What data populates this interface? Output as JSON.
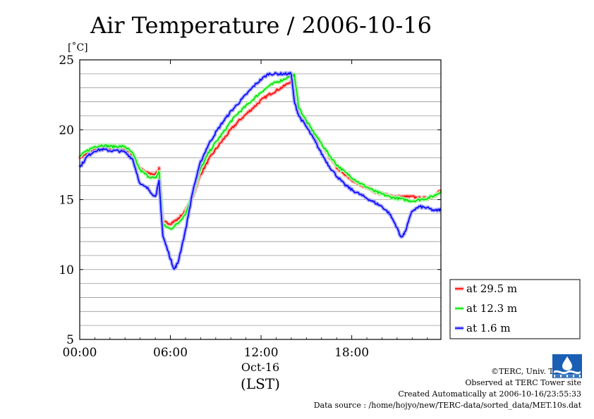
{
  "chart_data": {
    "type": "line",
    "title": "Air Temperature / 2006-10-16",
    "ylabel": "[˚C]",
    "xlabel": "(LST)",
    "date_label": "Oct-16",
    "x_ticks": [
      "00:00",
      "06:00",
      "12:00",
      "18:00"
    ],
    "x_range_hours": [
      0,
      23.9
    ],
    "y_ticks": [
      "25",
      "20",
      "15",
      "10",
      "5"
    ],
    "ylim": [
      5,
      25
    ],
    "grid": true,
    "legend_position": "right",
    "series": [
      {
        "name": "at 29.5 m",
        "color": "#ff0000",
        "x": [
          0,
          0.5,
          1,
          1.5,
          2,
          2.5,
          3,
          3.5,
          4,
          4.5,
          5,
          5.25,
          5.5,
          6,
          6.5,
          7,
          7.5,
          8,
          8.5,
          9,
          9.5,
          10,
          10.5,
          11,
          11.5,
          12,
          12.5,
          13,
          13.5,
          14,
          14.2,
          14.5,
          15,
          15.5,
          16,
          16.5,
          17,
          17.5,
          18,
          18.5,
          19,
          19.5,
          20,
          20.5,
          21,
          21.5,
          22,
          22.5,
          23,
          23.5,
          23.9
        ],
        "values": [
          18.0,
          18.3,
          18.6,
          18.7,
          18.6,
          18.6,
          18.6,
          18.2,
          17.2,
          16.9,
          16.8,
          17.2,
          13.4,
          13.3,
          13.6,
          14.2,
          15.3,
          16.8,
          17.8,
          18.6,
          19.3,
          20.0,
          20.6,
          21.1,
          21.6,
          22.1,
          22.5,
          22.8,
          23.1,
          23.5,
          23.5,
          21.3,
          20.3,
          19.6,
          18.9,
          18.1,
          17.3,
          16.8,
          16.4,
          16.1,
          15.9,
          15.6,
          15.4,
          15.3,
          15.2,
          15.2,
          15.2,
          15.1,
          15.1,
          15.3,
          15.7
        ]
      },
      {
        "name": "at 12.3 m",
        "color": "#00e000",
        "x": [
          0,
          0.5,
          1,
          1.5,
          2,
          2.5,
          3,
          3.5,
          4,
          4.5,
          5,
          5.25,
          5.5,
          6,
          6.5,
          7,
          7.5,
          8,
          8.5,
          9,
          9.5,
          10,
          10.5,
          11,
          11.5,
          12,
          12.5,
          13,
          13.5,
          14,
          14.2,
          14.5,
          15,
          15.5,
          16,
          16.5,
          17,
          17.5,
          18,
          18.5,
          19,
          19.5,
          20,
          20.5,
          21,
          21.5,
          22,
          22.5,
          23,
          23.5,
          23.9
        ],
        "values": [
          18.1,
          18.5,
          18.8,
          18.9,
          18.8,
          18.8,
          18.8,
          18.3,
          17.1,
          16.7,
          16.5,
          17.0,
          13.2,
          12.9,
          13.3,
          14.0,
          15.5,
          17.2,
          18.3,
          19.1,
          19.8,
          20.6,
          21.2,
          21.7,
          22.2,
          22.7,
          23.1,
          23.4,
          23.6,
          23.9,
          23.9,
          21.6,
          20.6,
          19.8,
          19.0,
          18.2,
          17.5,
          17.0,
          16.6,
          16.2,
          15.9,
          15.6,
          15.4,
          15.2,
          15.1,
          15.0,
          14.9,
          15.0,
          15.1,
          15.3,
          15.6
        ]
      },
      {
        "name": "at 1.6 m",
        "color": "#0000ff",
        "x": [
          0,
          0.5,
          1,
          1.5,
          2,
          2.5,
          3,
          3.5,
          4,
          4.5,
          5,
          5.25,
          5.5,
          6,
          6.25,
          6.5,
          7,
          7.5,
          8,
          8.5,
          9,
          9.5,
          10,
          10.5,
          11,
          11.5,
          12,
          12.5,
          13,
          13.5,
          14,
          14.2,
          14.5,
          15,
          15.5,
          16,
          16.5,
          17,
          17.5,
          18,
          18.5,
          19,
          19.5,
          20,
          20.5,
          21,
          21.25,
          21.5,
          22,
          22.5,
          23,
          23.5,
          23.9
        ],
        "values": [
          17.3,
          18.1,
          18.5,
          18.6,
          18.5,
          18.5,
          18.4,
          17.9,
          16.1,
          15.8,
          15.2,
          16.3,
          12.4,
          10.8,
          10.0,
          10.5,
          12.8,
          15.7,
          17.7,
          18.9,
          19.8,
          20.6,
          21.3,
          21.9,
          22.5,
          23.1,
          23.6,
          24.0,
          24.0,
          24.0,
          24.0,
          22.0,
          21.0,
          20.2,
          19.3,
          18.3,
          17.4,
          16.7,
          16.1,
          15.7,
          15.4,
          15.1,
          14.8,
          14.5,
          14.0,
          13.0,
          12.3,
          12.6,
          14.2,
          14.5,
          14.4,
          14.2,
          14.3
        ]
      }
    ]
  },
  "credits": {
    "copyright": "©TERC, Univ. Tsukuba",
    "site": "Observed at TERC Tower site",
    "created": "Created Automatically at 2006-10-16/23:55:33",
    "source": "Data source : /home/hojyo/new/TERC-data/sorted_data/MET.10s.dat"
  }
}
